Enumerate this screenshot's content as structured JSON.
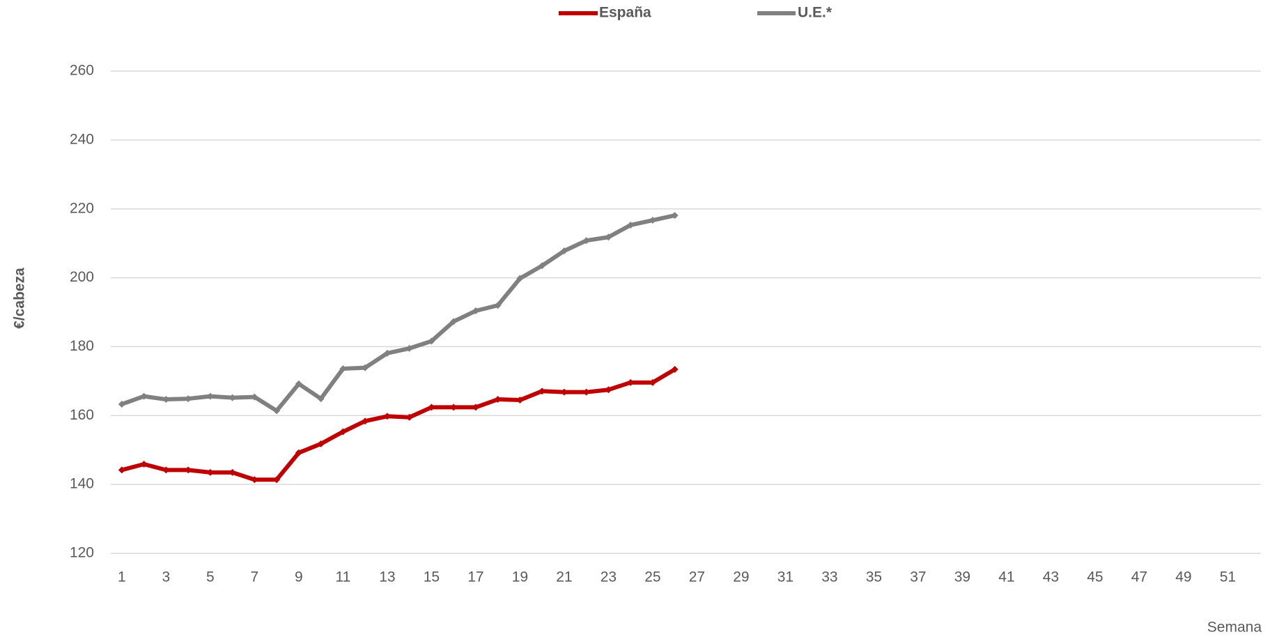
{
  "chart_data": {
    "type": "line",
    "y_label": "€/cabeza",
    "x_label": "Semana",
    "categories": [
      1,
      null,
      3,
      null,
      5,
      null,
      7,
      null,
      9,
      null,
      11,
      null,
      13,
      null,
      15,
      null,
      17,
      null,
      19,
      null,
      21,
      null,
      23,
      null,
      25,
      null,
      27,
      null,
      29,
      null,
      31,
      null,
      33,
      null,
      35,
      null,
      37,
      null,
      39,
      null,
      41,
      null,
      43,
      null,
      45,
      null,
      47,
      null,
      49,
      null,
      51,
      null
    ],
    "series": [
      {
        "name": "España",
        "color": "#c00000",
        "values": [
          144.2,
          145.9,
          144.2,
          144.2,
          143.5,
          143.5,
          141.4,
          141.4,
          149.2,
          151.8,
          155.3,
          158.4,
          159.8,
          159.5,
          162.4,
          162.4,
          162.4,
          164.7,
          164.5,
          167.1,
          166.8,
          166.8,
          167.5,
          169.6,
          169.6,
          173.4,
          null,
          null,
          null,
          null,
          null,
          null,
          null,
          null,
          null,
          null,
          null,
          null,
          null,
          null,
          null,
          null,
          null,
          null,
          null,
          null,
          null,
          null,
          null,
          null,
          null,
          null
        ]
      },
      {
        "name": "U.E.*",
        "color": "#808080",
        "values": [
          163.3,
          165.6,
          164.7,
          164.9,
          165.6,
          165.2,
          165.4,
          161.4,
          169.2,
          164.9,
          173.6,
          173.9,
          178.1,
          179.5,
          181.6,
          187.3,
          190.4,
          192.0,
          199.8,
          203.5,
          207.8,
          210.8,
          211.8,
          215.3,
          216.7,
          218.1,
          null,
          null,
          null,
          null,
          null,
          null,
          null,
          null,
          null,
          null,
          null,
          null,
          null,
          null,
          null,
          null,
          null,
          null,
          null,
          null,
          null,
          null,
          null,
          null,
          null,
          null
        ]
      }
    ],
    "ylim": [
      120,
      260
    ],
    "yticks": [
      120,
      140,
      160,
      180,
      200,
      220,
      240,
      260
    ],
    "grid": true
  }
}
